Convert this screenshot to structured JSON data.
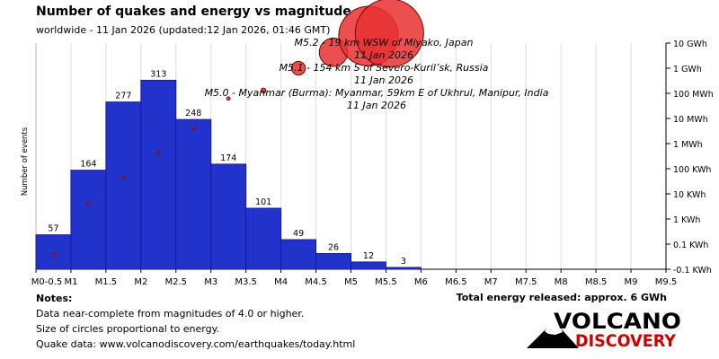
{
  "header": {
    "title": "Number of quakes and energy vs magnitude",
    "subtitle": "worldwide - 11 Jan 2026 (updated:12 Jan 2026, 01:46 GMT)"
  },
  "chart_data": {
    "type": "bar",
    "ylabel": "Number of events",
    "categories": [
      "M0-0.5",
      "M0.5-1",
      "M1-1.5",
      "M1.5-2",
      "M2-2.5",
      "M2.5-3",
      "M3-3.5",
      "M3.5-4",
      "M4-4.5",
      "M4.5-5",
      "M5-5.5"
    ],
    "x_ticks": [
      "M0-0.5",
      "M1",
      "M1.5",
      "M2",
      "M2.5",
      "M3",
      "M3.5",
      "M4",
      "M4.5",
      "M5",
      "M5.5",
      "M6",
      "M6.5",
      "M7",
      "M7.5",
      "M8",
      "M8.5",
      "M9",
      "M9.5"
    ],
    "values": [
      57,
      164,
      277,
      313,
      248,
      174,
      101,
      49,
      26,
      12,
      3
    ],
    "value_labels": [
      "57",
      "164",
      "277",
      "313",
      "248",
      "174",
      "101",
      "49",
      "26",
      "12",
      "3"
    ],
    "ylim": [
      0,
      330
    ],
    "energy_axis_ticks": [
      "-0.1 KWh",
      "0.1 KWh",
      "1 KWh",
      "10 KWh",
      "100 KWh",
      "1 MWh",
      "10 MWh",
      "100 MWh",
      "1 GWh",
      "10 GWh"
    ],
    "energy_circles": [
      {
        "magnitude": 0.25,
        "energy_kwh": 0.38
      },
      {
        "magnitude": 0.75,
        "energy_kwh": 42
      },
      {
        "magnitude": 1.25,
        "energy_kwh": 430
      },
      {
        "magnitude": 1.75,
        "energy_kwh": 4200
      },
      {
        "magnitude": 2.25,
        "energy_kwh": 42000
      },
      {
        "magnitude": 2.75,
        "energy_kwh": 620000
      },
      {
        "magnitude": 3.25,
        "energy_kwh": 1300000
      },
      {
        "magnitude": 3.75,
        "energy_kwh": 10000000
      },
      {
        "magnitude": 4.25,
        "energy_kwh": 43000000
      },
      {
        "magnitude": 4.75,
        "energy_kwh": 190000000
      },
      {
        "magnitude": 5.05,
        "energy_kwh": 250000000
      }
    ],
    "annotations": [
      {
        "text": "M5.2 - 19 km WSW of Miyako, Japan",
        "date": "11 Jan 2026"
      },
      {
        "text": "M5.1 - 154 km S of Severo-Kuril’sk, Russia",
        "date": "11 Jan 2026"
      },
      {
        "text": "M5.0 - Myanmar (Burma): Myanmar, 59km E of Ukhrul, Manipur, India",
        "date": "11 Jan 2026"
      }
    ],
    "bar_color": "#2233cc",
    "circle_color": "#e83030"
  },
  "notes": {
    "heading": "Notes:",
    "lines": [
      "Data near-complete from magnitudes of 4.0 or higher.",
      "Size of circles proportional to energy.",
      "Quake data: www.volcanodiscovery.com/earthquakes/today.html"
    ]
  },
  "total_energy": "Total energy released: approx. 6 GWh",
  "logo": {
    "line1": "VOLCANO",
    "line2": "DISCOVERY"
  }
}
